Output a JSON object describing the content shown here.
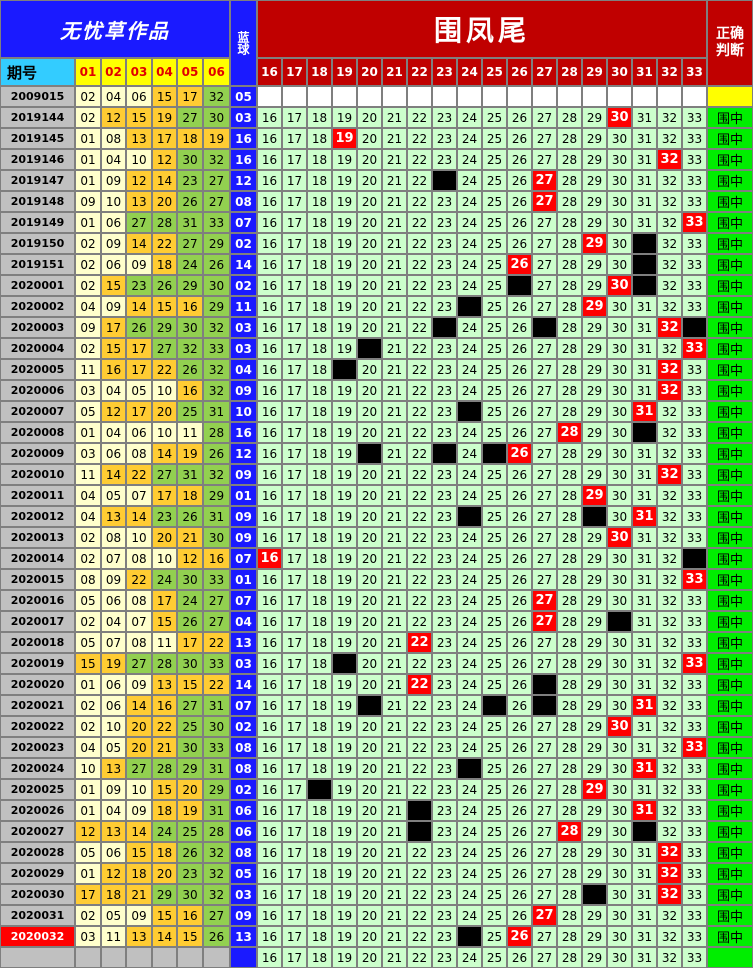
{
  "header": {
    "title": "无忧草作品",
    "blue_label": "蓝球",
    "tail_title": "围凤尾",
    "judge_label": "正确判断",
    "period_label": "期号",
    "number_columns": [
      "01",
      "02",
      "03",
      "04",
      "05",
      "06"
    ],
    "tail_columns": [
      "16",
      "17",
      "18",
      "19",
      "20",
      "21",
      "22",
      "23",
      "24",
      "25",
      "26",
      "27",
      "28",
      "29",
      "30",
      "31",
      "32",
      "33"
    ]
  },
  "first_row": {
    "period": "2009015",
    "numbers": [
      "02",
      "04",
      "06",
      "15",
      "17",
      "32"
    ],
    "blue": "05"
  },
  "rows": [
    {
      "period": "2019144",
      "numbers": [
        "02",
        "12",
        "15",
        "19",
        "27",
        "30"
      ],
      "blue": "03",
      "red": "30",
      "black": [],
      "judge": "围中"
    },
    {
      "period": "2019145",
      "numbers": [
        "01",
        "08",
        "13",
        "17",
        "18",
        "19"
      ],
      "blue": "16",
      "red": "19",
      "black": [],
      "judge": "围中"
    },
    {
      "period": "2019146",
      "numbers": [
        "01",
        "04",
        "10",
        "12",
        "30",
        "32"
      ],
      "blue": "16",
      "red": "32",
      "black": [],
      "judge": "围中"
    },
    {
      "period": "2019147",
      "numbers": [
        "01",
        "09",
        "12",
        "14",
        "23",
        "27"
      ],
      "blue": "12",
      "red": "27",
      "black": [
        "23"
      ],
      "judge": "围中"
    },
    {
      "period": "2019148",
      "numbers": [
        "09",
        "10",
        "13",
        "20",
        "26",
        "27"
      ],
      "blue": "08",
      "red": "27",
      "black": [],
      "judge": "围中"
    },
    {
      "period": "2019149",
      "numbers": [
        "01",
        "06",
        "27",
        "28",
        "31",
        "33"
      ],
      "blue": "07",
      "red": "33",
      "black": [],
      "judge": "围中"
    },
    {
      "period": "2019150",
      "numbers": [
        "02",
        "09",
        "14",
        "22",
        "27",
        "29"
      ],
      "blue": "02",
      "red": "29",
      "black": [
        "31"
      ],
      "judge": "围中"
    },
    {
      "period": "2019151",
      "numbers": [
        "02",
        "06",
        "09",
        "18",
        "24",
        "26"
      ],
      "blue": "14",
      "red": "26",
      "black": [
        "31"
      ],
      "judge": "围中"
    },
    {
      "period": "2020001",
      "numbers": [
        "02",
        "15",
        "23",
        "26",
        "29",
        "30"
      ],
      "blue": "02",
      "red": "30",
      "black": [
        "26",
        "31"
      ],
      "judge": "围中"
    },
    {
      "period": "2020002",
      "numbers": [
        "04",
        "09",
        "14",
        "15",
        "16",
        "29"
      ],
      "blue": "11",
      "red": "29",
      "black": [
        "24"
      ],
      "judge": "围中"
    },
    {
      "period": "2020003",
      "numbers": [
        "09",
        "17",
        "26",
        "29",
        "30",
        "32"
      ],
      "blue": "03",
      "red": "32",
      "black": [
        "23",
        "27",
        "33"
      ],
      "judge": "围中"
    },
    {
      "period": "2020004",
      "numbers": [
        "02",
        "15",
        "17",
        "27",
        "32",
        "33"
      ],
      "blue": "03",
      "red": "33",
      "black": [
        "20"
      ],
      "judge": "围中"
    },
    {
      "period": "2020005",
      "numbers": [
        "11",
        "16",
        "17",
        "22",
        "26",
        "32"
      ],
      "blue": "04",
      "red": "32",
      "black": [
        "19"
      ],
      "judge": "围中"
    },
    {
      "period": "2020006",
      "numbers": [
        "03",
        "04",
        "05",
        "10",
        "16",
        "32"
      ],
      "blue": "09",
      "red": "32",
      "black": [],
      "judge": "围中"
    },
    {
      "period": "2020007",
      "numbers": [
        "05",
        "12",
        "17",
        "20",
        "25",
        "31"
      ],
      "blue": "10",
      "red": "31",
      "black": [
        "24"
      ],
      "judge": "围中"
    },
    {
      "period": "2020008",
      "numbers": [
        "01",
        "04",
        "06",
        "10",
        "11",
        "28"
      ],
      "blue": "16",
      "red": "28",
      "black": [
        "31"
      ],
      "judge": "围中"
    },
    {
      "period": "2020009",
      "numbers": [
        "03",
        "06",
        "08",
        "14",
        "19",
        "26"
      ],
      "blue": "12",
      "red": "26",
      "black": [
        "20",
        "23",
        "25"
      ],
      "judge": "围中"
    },
    {
      "period": "2020010",
      "numbers": [
        "11",
        "14",
        "22",
        "27",
        "31",
        "32"
      ],
      "blue": "09",
      "red": "32",
      "black": [],
      "judge": "围中"
    },
    {
      "period": "2020011",
      "numbers": [
        "04",
        "05",
        "07",
        "17",
        "18",
        "29"
      ],
      "blue": "01",
      "red": "29",
      "black": [],
      "judge": "围中"
    },
    {
      "period": "2020012",
      "numbers": [
        "04",
        "13",
        "14",
        "23",
        "26",
        "31"
      ],
      "blue": "09",
      "red": "31",
      "black": [
        "24",
        "29"
      ],
      "judge": "围中"
    },
    {
      "period": "2020013",
      "numbers": [
        "02",
        "08",
        "10",
        "20",
        "21",
        "30"
      ],
      "blue": "09",
      "red": "30",
      "black": [],
      "judge": "围中"
    },
    {
      "period": "2020014",
      "numbers": [
        "02",
        "07",
        "08",
        "10",
        "12",
        "16"
      ],
      "blue": "07",
      "red": "16",
      "black": [
        "33"
      ],
      "judge": "围中"
    },
    {
      "period": "2020015",
      "numbers": [
        "08",
        "09",
        "22",
        "24",
        "30",
        "33"
      ],
      "blue": "01",
      "red": "33",
      "black": [],
      "judge": "围中"
    },
    {
      "period": "2020016",
      "numbers": [
        "05",
        "06",
        "08",
        "17",
        "24",
        "27"
      ],
      "blue": "07",
      "red": "27",
      "black": [],
      "judge": "围中"
    },
    {
      "period": "2020017",
      "numbers": [
        "02",
        "04",
        "07",
        "15",
        "26",
        "27"
      ],
      "blue": "04",
      "red": "27",
      "black": [
        "30"
      ],
      "judge": "围中"
    },
    {
      "period": "2020018",
      "numbers": [
        "05",
        "07",
        "08",
        "11",
        "17",
        "22"
      ],
      "blue": "13",
      "red": "22",
      "black": [],
      "judge": "围中"
    },
    {
      "period": "2020019",
      "numbers": [
        "15",
        "19",
        "27",
        "28",
        "30",
        "33"
      ],
      "blue": "03",
      "red": "33",
      "black": [
        "19"
      ],
      "judge": "围中"
    },
    {
      "period": "2020020",
      "numbers": [
        "01",
        "06",
        "09",
        "13",
        "15",
        "22"
      ],
      "blue": "14",
      "red": "22",
      "black": [
        "27"
      ],
      "judge": "围中"
    },
    {
      "period": "2020021",
      "numbers": [
        "02",
        "06",
        "14",
        "16",
        "27",
        "31"
      ],
      "blue": "07",
      "red": "31",
      "black": [
        "20",
        "25",
        "27"
      ],
      "judge": "围中"
    },
    {
      "period": "2020022",
      "numbers": [
        "02",
        "10",
        "20",
        "22",
        "25",
        "30"
      ],
      "blue": "02",
      "red": "30",
      "black": [],
      "judge": "围中"
    },
    {
      "period": "2020023",
      "numbers": [
        "04",
        "05",
        "20",
        "21",
        "30",
        "33"
      ],
      "blue": "08",
      "red": "33",
      "black": [],
      "judge": "围中"
    },
    {
      "period": "2020024",
      "numbers": [
        "10",
        "13",
        "27",
        "28",
        "29",
        "31"
      ],
      "blue": "08",
      "red": "31",
      "black": [
        "24"
      ],
      "judge": "围中"
    },
    {
      "period": "2020025",
      "numbers": [
        "01",
        "09",
        "10",
        "15",
        "20",
        "29"
      ],
      "blue": "02",
      "red": "29",
      "black": [
        "18"
      ],
      "judge": "围中"
    },
    {
      "period": "2020026",
      "numbers": [
        "01",
        "04",
        "09",
        "18",
        "19",
        "31"
      ],
      "blue": "06",
      "red": "31",
      "black": [
        "22"
      ],
      "judge": "围中"
    },
    {
      "period": "2020027",
      "numbers": [
        "12",
        "13",
        "14",
        "24",
        "25",
        "28"
      ],
      "blue": "06",
      "red": "28",
      "black": [
        "22",
        "31"
      ],
      "judge": "围中"
    },
    {
      "period": "2020028",
      "numbers": [
        "05",
        "06",
        "15",
        "18",
        "26",
        "32"
      ],
      "blue": "08",
      "red": "32",
      "black": [],
      "judge": "围中"
    },
    {
      "period": "2020029",
      "numbers": [
        "01",
        "12",
        "18",
        "20",
        "23",
        "32"
      ],
      "blue": "05",
      "red": "32",
      "black": [],
      "judge": "围中"
    },
    {
      "period": "2020030",
      "numbers": [
        "17",
        "18",
        "21",
        "29",
        "30",
        "32"
      ],
      "blue": "03",
      "red": "32",
      "black": [
        "29"
      ],
      "judge": "围中"
    },
    {
      "period": "2020031",
      "numbers": [
        "02",
        "05",
        "09",
        "15",
        "16",
        "27"
      ],
      "blue": "09",
      "red": "27",
      "black": [],
      "judge": "围中"
    },
    {
      "period": "2020032",
      "numbers": [
        "03",
        "11",
        "13",
        "14",
        "15",
        "26"
      ],
      "blue": "13",
      "red": "26",
      "black": [
        "24"
      ],
      "judge": "围中"
    }
  ]
}
